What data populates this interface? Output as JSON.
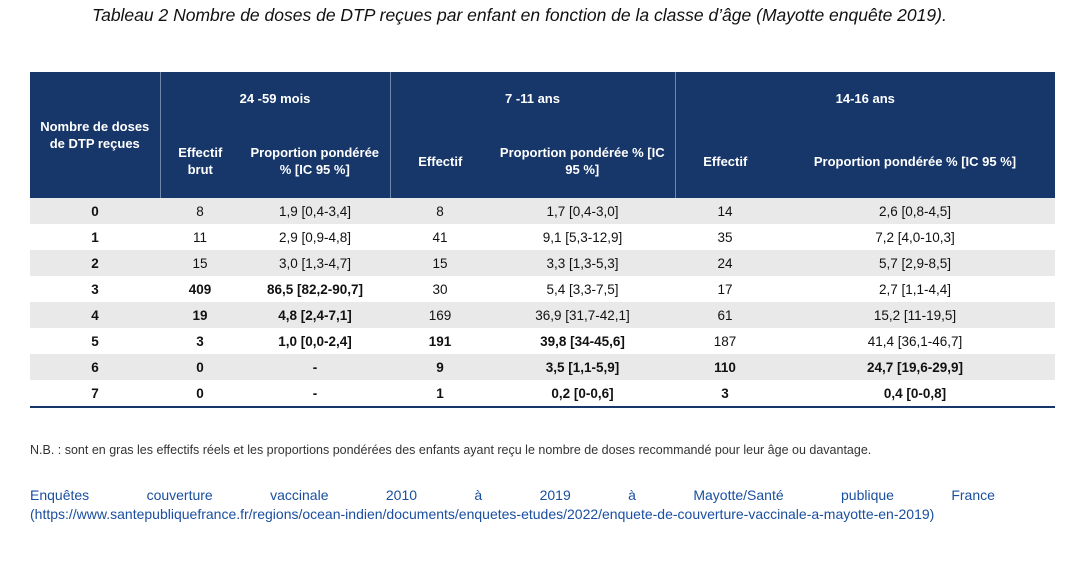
{
  "title": "Tableau 2 Nombre de doses de DTP reçues par enfant en fonction de la classe d’âge (Mayotte enquête 2019).",
  "table": {
    "row_header": "Nombre de doses de DTP reçues",
    "groups": [
      "24 -59 mois",
      "7 -11 ans",
      "14-16 ans"
    ],
    "sub_headers": {
      "g1_count": "Effectif brut",
      "g1_prop": "Proportion pondérée % [IC 95 %]",
      "g2_count": "Effectif",
      "g2_prop": "Proportion pondérée % [IC 95 %]",
      "g3_count": "Effectif",
      "g3_prop": "Proportion pondérée % [IC 95 %]"
    },
    "rows": [
      {
        "dose": "0",
        "c1": "8",
        "p1": "1,9 [0,4-3,4]",
        "c2": "8",
        "p2": "1,7 [0,4-3,0]",
        "c3": "14",
        "p3": "2,6 [0,8-4,5]"
      },
      {
        "dose": "1",
        "c1": "11",
        "p1": "2,9 [0,9-4,8]",
        "c2": "41",
        "p2": "9,1 [5,3-12,9]",
        "c3": "35",
        "p3": "7,2 [4,0-10,3]"
      },
      {
        "dose": "2",
        "c1": "15",
        "p1": "3,0 [1,3-4,7]",
        "c2": "15",
        "p2": "3,3 [1,3-5,3]",
        "c3": "24",
        "p3": "5,7 [2,9-8,5]"
      },
      {
        "dose": "3",
        "c1": "409",
        "p1": "86,5 [82,2-90,7]",
        "c2": "30",
        "p2": "5,4 [3,3-7,5]",
        "c3": "17",
        "p3": "2,7 [1,1-4,4]"
      },
      {
        "dose": "4",
        "c1": "19",
        "p1": "4,8 [2,4-7,1]",
        "c2": "169",
        "p2": "36,9 [31,7-42,1]",
        "c3": "61",
        "p3": "15,2 [11-19,5]"
      },
      {
        "dose": "5",
        "c1": "3",
        "p1": "1,0 [0,0-2,4]",
        "c2": "191",
        "p2": "39,8 [34-45,6]",
        "c3": "187",
        "p3": "41,4 [36,1-46,7]"
      },
      {
        "dose": "6",
        "c1": "0",
        "p1": "-",
        "c2": "9",
        "p2": "3,5 [1,1-5,9]",
        "c3": "110",
        "p3": "24,7 [19,6-29,9]"
      },
      {
        "dose": "7",
        "c1": "0",
        "p1": "-",
        "c2": "1",
        "p2": "0,2 [0-0,6]",
        "c3": "3",
        "p3": "0,4 [0-0,8]"
      }
    ]
  },
  "note": "N.B. : sont en gras les effectifs réels et les proportions pondérées des enfants ayant reçu le nombre de doses recommandé pour leur âge ou davantage.",
  "source": {
    "words": [
      "Enquêtes",
      "couverture",
      "vaccinale",
      "2010",
      "à",
      "2019",
      "à",
      "Mayotte/Santé",
      "publique",
      "France"
    ],
    "url": "(https://www.santepubliquefrance.fr/regions/ocean-indien/documents/enquetes-etudes/2022/enquete-de-couverture-vaccinale-a-mayotte-en-2019)"
  }
}
